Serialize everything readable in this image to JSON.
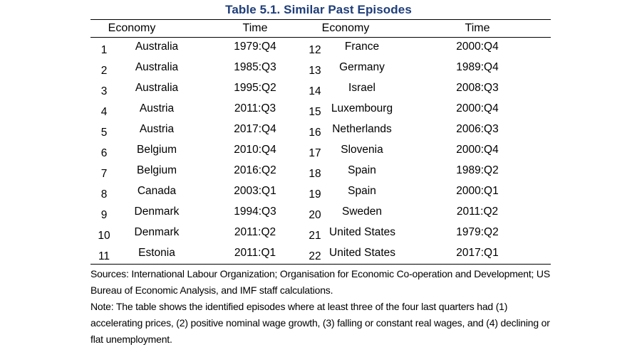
{
  "title": "Table 5.1.  Similar Past Episodes",
  "headers": {
    "economy_left": "Economy",
    "time_left": "Time",
    "economy_right": "Economy",
    "time_right": "Time"
  },
  "left_rows": [
    {
      "num": "1",
      "economy": "Australia",
      "time": "1979:Q4"
    },
    {
      "num": "2",
      "economy": "Australia",
      "time": "1985:Q3"
    },
    {
      "num": "3",
      "economy": "Australia",
      "time": "1995:Q2"
    },
    {
      "num": "4",
      "economy": "Austria",
      "time": "2011:Q3"
    },
    {
      "num": "5",
      "economy": "Austria",
      "time": "2017:Q4"
    },
    {
      "num": "6",
      "economy": "Belgium",
      "time": "2010:Q4"
    },
    {
      "num": "7",
      "economy": "Belgium",
      "time": "2016:Q2"
    },
    {
      "num": "8",
      "economy": "Canada",
      "time": "2003:Q1"
    },
    {
      "num": "9",
      "economy": "Denmark",
      "time": "1994:Q3"
    },
    {
      "num": "10",
      "economy": "Denmark",
      "time": "2011:Q2"
    },
    {
      "num": "11",
      "economy": "Estonia",
      "time": "2011:Q1"
    }
  ],
  "right_rows": [
    {
      "num": "12",
      "economy": "France",
      "time": "2000:Q4"
    },
    {
      "num": "13",
      "economy": "Germany",
      "time": "1989:Q4"
    },
    {
      "num": "14",
      "economy": "Israel",
      "time": "2008:Q3"
    },
    {
      "num": "15",
      "economy": "Luxembourg",
      "time": "2000:Q4"
    },
    {
      "num": "16",
      "economy": "Netherlands",
      "time": "2006:Q3"
    },
    {
      "num": "17",
      "economy": "Slovenia",
      "time": "2000:Q4"
    },
    {
      "num": "18",
      "economy": "Spain",
      "time": "1989:Q2"
    },
    {
      "num": "19",
      "economy": "Spain",
      "time": "2000:Q1"
    },
    {
      "num": "20",
      "economy": "Sweden",
      "time": "2011:Q2"
    },
    {
      "num": "21",
      "economy": "United States",
      "time": "1979:Q2"
    },
    {
      "num": "22",
      "economy": "United States",
      "time": "2017:Q1"
    }
  ],
  "sources": "Sources: International Labour Organization; Organisation for Economic Co-operation and Development; US Bureau of Economic Analysis, and IMF staff calculations.",
  "note": "Note: The table shows the identified episodes where at least three of the four last quarters had (1) accelerating prices, (2) positive nominal wage growth, (3) falling or constant real wages, and (4) declining or flat unemployment."
}
